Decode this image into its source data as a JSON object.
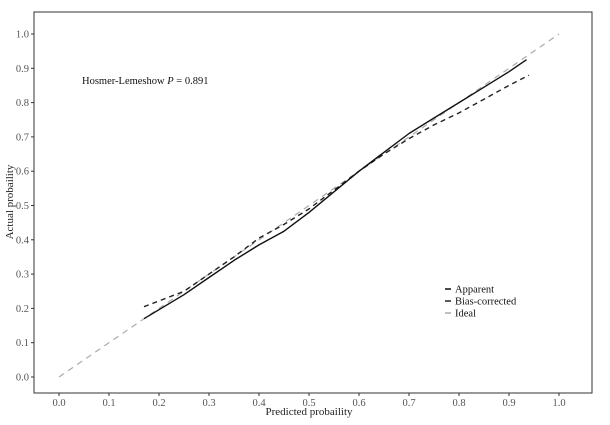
{
  "chart_data": {
    "type": "line",
    "title": "",
    "xlabel": "Predicted probaility",
    "ylabel": "Actual probaility",
    "xlim": [
      0,
      1
    ],
    "ylim": [
      0,
      1
    ],
    "xticks": [
      "0.0",
      "0.1",
      "0.2",
      "0.3",
      "0.4",
      "0.5",
      "0.6",
      "0.7",
      "0.8",
      "0.9",
      "1.0"
    ],
    "yticks": [
      "0.0",
      "0.1",
      "0.2",
      "0.3",
      "0.4",
      "0.5",
      "0.6",
      "0.7",
      "0.8",
      "0.9",
      "1.0"
    ],
    "grid": false,
    "legend_position": "bottom-right",
    "annotation": {
      "prefix": "Hosmer-Lemeshow ",
      "italic": "P",
      "suffix": " = 0.891"
    },
    "series": [
      {
        "name": "Apparent",
        "style": "solid",
        "color": "#111111",
        "x": [
          0.17,
          0.25,
          0.3,
          0.35,
          0.4,
          0.45,
          0.5,
          0.55,
          0.6,
          0.65,
          0.7,
          0.75,
          0.8,
          0.85,
          0.9,
          0.935
        ],
        "y": [
          0.17,
          0.24,
          0.29,
          0.34,
          0.385,
          0.425,
          0.48,
          0.54,
          0.6,
          0.655,
          0.71,
          0.755,
          0.8,
          0.845,
          0.89,
          0.925
        ]
      },
      {
        "name": "Bias-corrected",
        "style": "dashed",
        "color": "#222222",
        "x": [
          0.17,
          0.25,
          0.3,
          0.35,
          0.4,
          0.45,
          0.5,
          0.55,
          0.6,
          0.65,
          0.7,
          0.75,
          0.8,
          0.85,
          0.9,
          0.94
        ],
        "y": [
          0.205,
          0.25,
          0.3,
          0.35,
          0.405,
          0.445,
          0.49,
          0.545,
          0.6,
          0.65,
          0.695,
          0.735,
          0.77,
          0.81,
          0.85,
          0.88
        ]
      },
      {
        "name": "Ideal",
        "style": "dashed",
        "color": "#aaaaaa",
        "x": [
          0,
          1
        ],
        "y": [
          0,
          1
        ]
      }
    ]
  }
}
